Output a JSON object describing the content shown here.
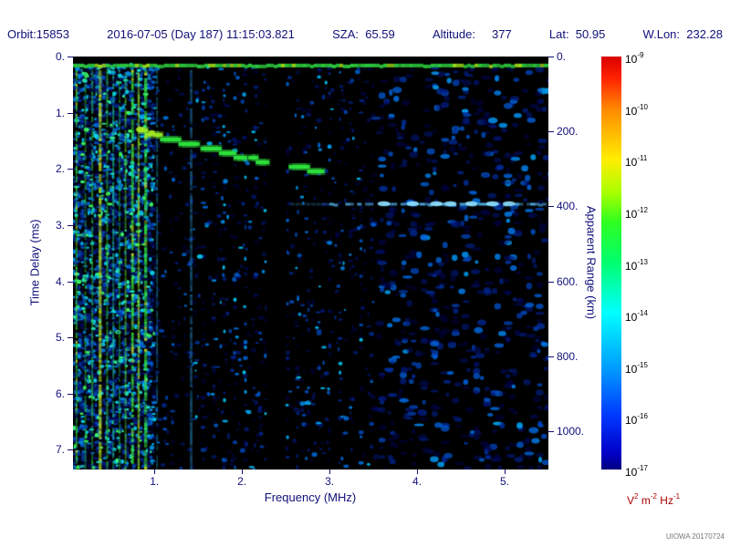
{
  "header": {
    "segments": [
      "Orbit:15853",
      "2016-07-05 (Day 187) 11:15:03.821",
      "SZA:  65.59",
      "Altitude:     377",
      "Lat:  50.95",
      "W.Lon:  232.28"
    ],
    "text_color": "#10107a"
  },
  "watermark": "UIOWA 20170724",
  "chart_data": {
    "type": "heatmap",
    "subtype": "radar-sounder-ionogram-spectrogram",
    "xlabel": "Frequency (MHz)",
    "ylabel_left": "Time Delay (ms)",
    "ylabel_right": "Apparent Range (km)",
    "x_range_mhz": [
      0.07,
      5.5
    ],
    "y_range_ms": [
      0.0,
      7.35
    ],
    "km_per_ms": 150,
    "x_ticks": {
      "values": [
        1,
        2,
        3,
        4,
        5
      ],
      "labels": [
        "1.",
        "2.",
        "3.",
        "4.",
        "5."
      ]
    },
    "y_ticks_left": {
      "values": [
        0,
        1,
        2,
        3,
        4,
        5,
        6,
        7
      ],
      "labels": [
        "0.",
        "1.",
        "2.",
        "3.",
        "4.",
        "5.",
        "6.",
        "7."
      ]
    },
    "y_ticks_right": {
      "values_km": [
        0,
        200,
        400,
        600,
        800,
        1000
      ],
      "labels": [
        "0.",
        "200.",
        "400.",
        "600.",
        "800.",
        "1000."
      ]
    },
    "colorbar": {
      "scale": "log",
      "units": "V^2 m^-2 Hz^-1",
      "units_parts": [
        [
          "V",
          "2"
        ],
        [
          "m",
          "-2"
        ],
        [
          "Hz",
          "-1"
        ]
      ],
      "units_color": "#aa0000",
      "tick_exponents": [
        -9,
        -10,
        -11,
        -12,
        -13,
        -14,
        -15,
        -16,
        -17
      ],
      "gradient_stops": [
        {
          "p": 0,
          "c": "#d80000"
        },
        {
          "p": 5,
          "c": "#ff2000"
        },
        {
          "p": 13,
          "c": "#ff8c00"
        },
        {
          "p": 25,
          "c": "#ffee00"
        },
        {
          "p": 33,
          "c": "#a8ff00"
        },
        {
          "p": 40,
          "c": "#30ff20"
        },
        {
          "p": 50,
          "c": "#00ff70"
        },
        {
          "p": 62,
          "c": "#00ffff"
        },
        {
          "p": 75,
          "c": "#00a0ff"
        },
        {
          "p": 87,
          "c": "#0038ff"
        },
        {
          "p": 96,
          "c": "#0000c8"
        },
        {
          "p": 100,
          "c": "#000080"
        }
      ]
    },
    "features": {
      "description": "Black background with blue speckle noise; dense green/yellow plasma-noise vertical bands below ~1 MHz; bright horizontal leakage line near 0.16 ms; stepped ionospheric echo trace descending from ~0.8 MHz @ 1.3 ms to ~2.9 MHz @ 2.0 ms; patchy cyan surface-reflection line at ~2.62 ms from ~3.0-5.5 MHz; dark vertical band at 2.28-2.50 MHz.",
      "noise_seed": 1337,
      "noise_count": 7600,
      "noise_profile": [
        {
          "f0": 0.07,
          "f1": 1.0,
          "p": 0.85
        },
        {
          "f0": 1.0,
          "f1": 1.45,
          "p": 0.3
        },
        {
          "f0": 1.45,
          "f1": 2.28,
          "p": 0.55
        },
        {
          "f0": 2.28,
          "f1": 2.5,
          "p": 0.05
        },
        {
          "f0": 2.5,
          "f1": 3.5,
          "p": 0.52
        },
        {
          "f0": 3.5,
          "f1": 5.5,
          "p": 0.42
        }
      ],
      "noise_colors": [
        [
          0,
          "#000050"
        ],
        [
          0.35,
          "#0030b0"
        ],
        [
          0.6,
          "#0070e8"
        ],
        [
          0.8,
          "#00c8f0"
        ],
        [
          0.92,
          "#20e8d0"
        ],
        [
          1,
          "#40ff60"
        ]
      ],
      "stripes": [
        {
          "f": 0.11,
          "w": 0.022,
          "c": "#2ec82e",
          "a": 0.9
        },
        {
          "f": 0.21,
          "w": 0.018,
          "c": "#28a828",
          "a": 0.7
        },
        {
          "f": 0.29,
          "w": 0.02,
          "c": "#30c040",
          "a": 0.8
        },
        {
          "f": 0.38,
          "w": 0.035,
          "c": "#a8d818",
          "a": 0.95
        },
        {
          "f": 0.46,
          "w": 0.02,
          "c": "#30c830",
          "a": 0.8
        },
        {
          "f": 0.53,
          "w": 0.02,
          "c": "#20c890",
          "a": 0.75
        },
        {
          "f": 0.6,
          "w": 0.018,
          "c": "#28b028",
          "a": 0.6
        },
        {
          "f": 0.67,
          "w": 0.02,
          "c": "#58cc20",
          "a": 0.75
        },
        {
          "f": 0.75,
          "w": 0.03,
          "c": "#38e038",
          "a": 0.95
        },
        {
          "f": 0.82,
          "w": 0.025,
          "c": "#88d820",
          "a": 0.85
        },
        {
          "f": 0.9,
          "w": 0.035,
          "c": "#30e040",
          "a": 0.95
        },
        {
          "f": 1.03,
          "w": 0.02,
          "c": "#20a8c8",
          "a": 0.5
        },
        {
          "f": 1.42,
          "w": 0.03,
          "c": "#2890d0",
          "a": 0.55
        }
      ],
      "top_line": {
        "ms": 0.16,
        "thickness_px": 4,
        "color": "#2cc83c"
      },
      "dark_band": {
        "f0": 2.28,
        "f1": 2.5
      },
      "ionosphere_trace": {
        "f": [
          0.78,
          1.05,
          1.35,
          1.65,
          1.95,
          2.28,
          2.55,
          2.9
        ],
        "ms": [
          1.3,
          1.42,
          1.53,
          1.64,
          1.76,
          1.88,
          1.94,
          2.03
        ],
        "color": "#2ee23c",
        "color_start": "#96e824"
      },
      "surface_trace": {
        "ms": 2.62,
        "f0": 3.0,
        "f1": 5.5,
        "color": "#55b8f5",
        "bright_color": "#8ee0ff",
        "bright_f": [
          3.62,
          3.95,
          4.22,
          4.38,
          4.62,
          4.86,
          5.05
        ]
      }
    }
  }
}
